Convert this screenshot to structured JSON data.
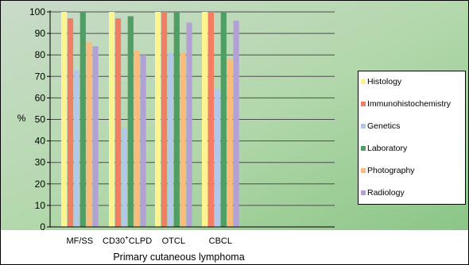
{
  "chart_data": {
    "type": "bar",
    "categories": [
      "MF/SS",
      "CD30",
      "OTCL",
      "CBCL"
    ],
    "category_superscript": {
      "CD30": "+"
    },
    "category_suffix": {
      "CD30": "CLPD"
    },
    "series": [
      {
        "name": "Histology",
        "color": "#fef391",
        "values": [
          100,
          100,
          100,
          100
        ]
      },
      {
        "name": "Immunohistochemistry",
        "color": "#f27f64",
        "values": [
          97,
          97,
          100,
          100
        ]
      },
      {
        "name": "Genetics",
        "color": "#b3c7e9",
        "values": [
          73,
          46,
          81,
          64
        ]
      },
      {
        "name": "Laboratory",
        "color": "#4f9e63",
        "values": [
          100,
          98,
          100,
          100
        ]
      },
      {
        "name": "Photography",
        "color": "#fbbb7a",
        "values": [
          86,
          82,
          81,
          78
        ]
      },
      {
        "name": "Radiology",
        "color": "#b3a1d6",
        "values": [
          84,
          80,
          95,
          96
        ]
      }
    ],
    "ylabel": "%",
    "xlabel": "Primary cutaneous lymphoma",
    "ylim": [
      0,
      100
    ],
    "yticks": [
      0,
      10,
      20,
      30,
      40,
      50,
      60,
      70,
      80,
      90,
      100
    ],
    "grid": true,
    "legend_position": "right"
  }
}
